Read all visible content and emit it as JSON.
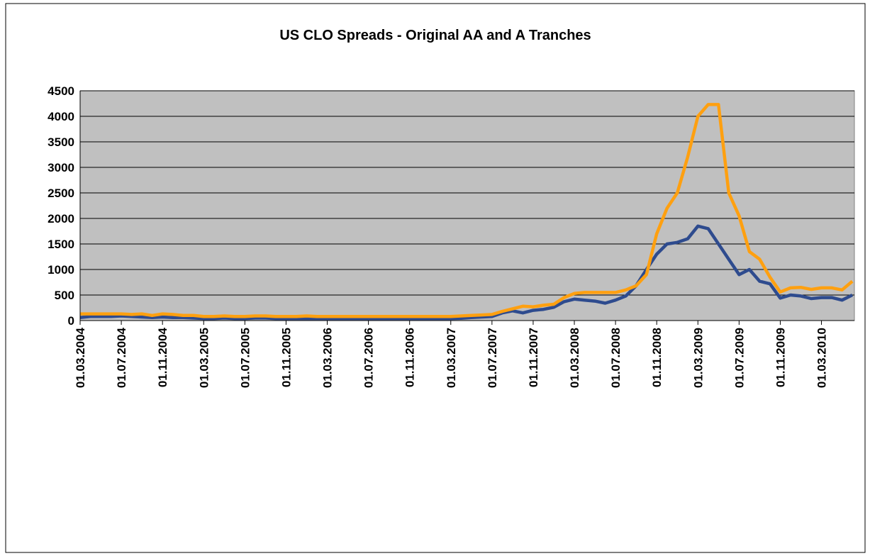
{
  "chart_data": {
    "type": "line",
    "title": "US CLO Spreads - Original AA and A Tranches",
    "x": [
      "01.03.2004",
      "01.04.2004",
      "01.05.2004",
      "01.06.2004",
      "01.07.2004",
      "01.08.2004",
      "01.09.2004",
      "01.10.2004",
      "01.11.2004",
      "01.12.2004",
      "01.01.2005",
      "01.02.2005",
      "01.03.2005",
      "01.04.2005",
      "01.05.2005",
      "01.06.2005",
      "01.07.2005",
      "01.08.2005",
      "01.09.2005",
      "01.10.2005",
      "01.11.2005",
      "01.12.2005",
      "01.01.2006",
      "01.02.2006",
      "01.03.2006",
      "01.04.2006",
      "01.05.2006",
      "01.06.2006",
      "01.07.2006",
      "01.08.2006",
      "01.09.2006",
      "01.10.2006",
      "01.11.2006",
      "01.12.2006",
      "01.01.2007",
      "01.02.2007",
      "01.03.2007",
      "01.04.2007",
      "01.05.2007",
      "01.06.2007",
      "01.07.2007",
      "01.08.2007",
      "01.09.2007",
      "01.10.2007",
      "01.11.2007",
      "01.12.2007",
      "01.01.2008",
      "01.02.2008",
      "01.03.2008",
      "01.04.2008",
      "01.05.2008",
      "01.06.2008",
      "01.07.2008",
      "01.08.2008",
      "01.09.2008",
      "01.10.2008",
      "01.11.2008",
      "01.12.2008",
      "01.01.2009",
      "01.02.2009",
      "01.03.2009",
      "01.04.2009",
      "01.05.2009",
      "01.06.2009",
      "01.07.2009",
      "01.08.2009",
      "01.09.2009",
      "01.10.2009",
      "01.11.2009",
      "01.12.2009",
      "01.01.2010",
      "01.02.2010",
      "01.03.2010",
      "01.04.2010",
      "01.05.2010",
      "01.06.2010"
    ],
    "series": [
      {
        "color": "#2e4b8e",
        "values": [
          60,
          80,
          80,
          80,
          90,
          80,
          70,
          60,
          70,
          60,
          60,
          50,
          40,
          40,
          50,
          40,
          40,
          50,
          50,
          40,
          40,
          40,
          40,
          40,
          40,
          40,
          40,
          40,
          40,
          40,
          40,
          40,
          40,
          40,
          40,
          40,
          40,
          45,
          60,
          70,
          80,
          150,
          190,
          150,
          200,
          220,
          260,
          370,
          420,
          400,
          380,
          340,
          400,
          480,
          680,
          1000,
          1300,
          1500,
          1530,
          1600,
          1850,
          1800,
          1500,
          1200,
          900,
          1000,
          770,
          720,
          440,
          500,
          480,
          430,
          450,
          450,
          400,
          500
        ]
      },
      {
        "color": "#ffa010",
        "values": [
          130,
          130,
          130,
          130,
          130,
          120,
          130,
          100,
          130,
          120,
          100,
          100,
          80,
          80,
          90,
          80,
          80,
          90,
          90,
          80,
          80,
          80,
          90,
          80,
          80,
          80,
          80,
          80,
          80,
          80,
          80,
          80,
          80,
          80,
          80,
          80,
          80,
          90,
          100,
          110,
          120,
          180,
          230,
          280,
          270,
          300,
          320,
          450,
          530,
          550,
          550,
          550,
          550,
          600,
          680,
          900,
          1700,
          2200,
          2500,
          3200,
          4000,
          4230,
          4230,
          2500,
          2050,
          1350,
          1200,
          850,
          560,
          640,
          650,
          610,
          640,
          640,
          600,
          770
        ]
      }
    ],
    "xticks": [
      "01.03.2004",
      "01.07.2004",
      "01.11.2004",
      "01.03.2005",
      "01.07.2005",
      "01.11.2005",
      "01.03.2006",
      "01.07.2006",
      "01.11.2006",
      "01.03.2007",
      "01.07.2007",
      "01.11.2007",
      "01.03.2008",
      "01.07.2008",
      "01.11.2008",
      "01.03.2009",
      "01.07.2009",
      "01.11.2009",
      "01.03.2010"
    ],
    "ylim": [
      0,
      4500
    ],
    "yticks": [
      0,
      500,
      1000,
      1500,
      2000,
      2500,
      3000,
      3500,
      4000,
      4500
    ],
    "grid": true,
    "plot_color": "#c0c0c0"
  }
}
